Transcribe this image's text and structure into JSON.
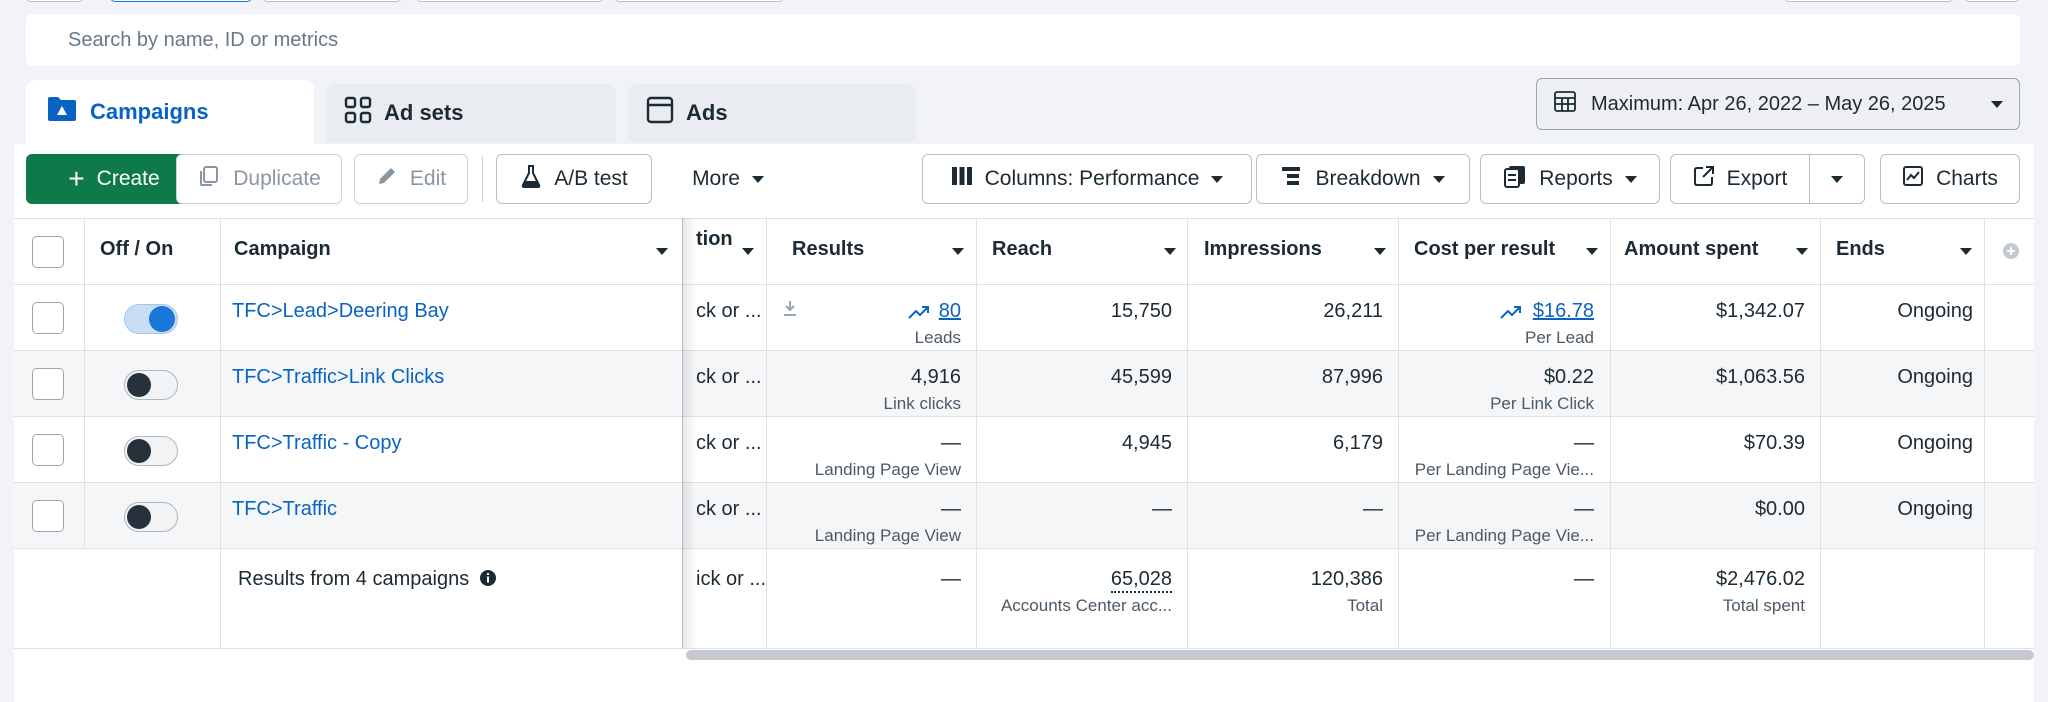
{
  "search": {
    "placeholder": "Search by name, ID or metrics"
  },
  "tabs": [
    {
      "label": "Campaigns",
      "icon": "folder-icon",
      "active": true
    },
    {
      "label": "Ad sets",
      "icon": "grid-icon",
      "active": false
    },
    {
      "label": "Ads",
      "icon": "ad-window-icon",
      "active": false
    }
  ],
  "date_range": {
    "label": "Maximum: Apr 26, 2022 – May 26, 2025"
  },
  "toolbar": {
    "create": "Create",
    "duplicate": "Duplicate",
    "edit": "Edit",
    "ab_test": "A/B test",
    "more": "More",
    "columns": "Columns: Performance",
    "breakdown": "Breakdown",
    "reports": "Reports",
    "export": "Export",
    "charts": "Charts"
  },
  "columns": {
    "toggle": "Off / On",
    "campaign": "Campaign",
    "attribution": "tion",
    "results": "Results",
    "reach": "Reach",
    "impressions": "Impressions",
    "cost_per_result": "Cost per result",
    "amount_spent": "Amount spent",
    "ends": "Ends"
  },
  "rows": [
    {
      "name": "TFC>Lead>Deering Bay",
      "on": true,
      "attribution": "ck or ...",
      "results": "80",
      "results_sub": "Leads",
      "reach": "15,750",
      "impressions": "26,211",
      "cost": "$16.78",
      "cost_sub": "Per Lead",
      "spent": "$1,342.07",
      "ends": "Ongoing"
    },
    {
      "name": "TFC>Traffic>Link Clicks",
      "on": false,
      "attribution": "ck or ...",
      "results": "4,916",
      "results_sub": "Link clicks",
      "reach": "45,599",
      "impressions": "87,996",
      "cost": "$0.22",
      "cost_sub": "Per Link Click",
      "spent": "$1,063.56",
      "ends": "Ongoing"
    },
    {
      "name": "TFC>Traffic - Copy",
      "on": false,
      "attribution": "ck or ...",
      "results": "—",
      "results_sub": "Landing Page View",
      "reach": "4,945",
      "impressions": "6,179",
      "cost": "—",
      "cost_sub": "Per Landing Page Vie...",
      "spent": "$70.39",
      "ends": "Ongoing"
    },
    {
      "name": "TFC>Traffic",
      "on": false,
      "attribution": "ck or ...",
      "results": "—",
      "results_sub": "Landing Page View",
      "reach": "—",
      "impressions": "—",
      "cost": "—",
      "cost_sub": "Per Landing Page Vie...",
      "spent": "$0.00",
      "ends": "Ongoing"
    }
  ],
  "totals": {
    "label": "Results from 4 campaigns",
    "attribution": "ick or ...",
    "results": "—",
    "reach": "65,028",
    "reach_sub": "Accounts Center acc...",
    "impressions": "120,386",
    "impressions_sub": "Total",
    "cost": "—",
    "spent": "$2,476.02",
    "spent_sub": "Total spent"
  },
  "colors": {
    "accent": "#0a63c2",
    "create_green": "#0e7a4b",
    "toggle_on": "#1877d8"
  }
}
